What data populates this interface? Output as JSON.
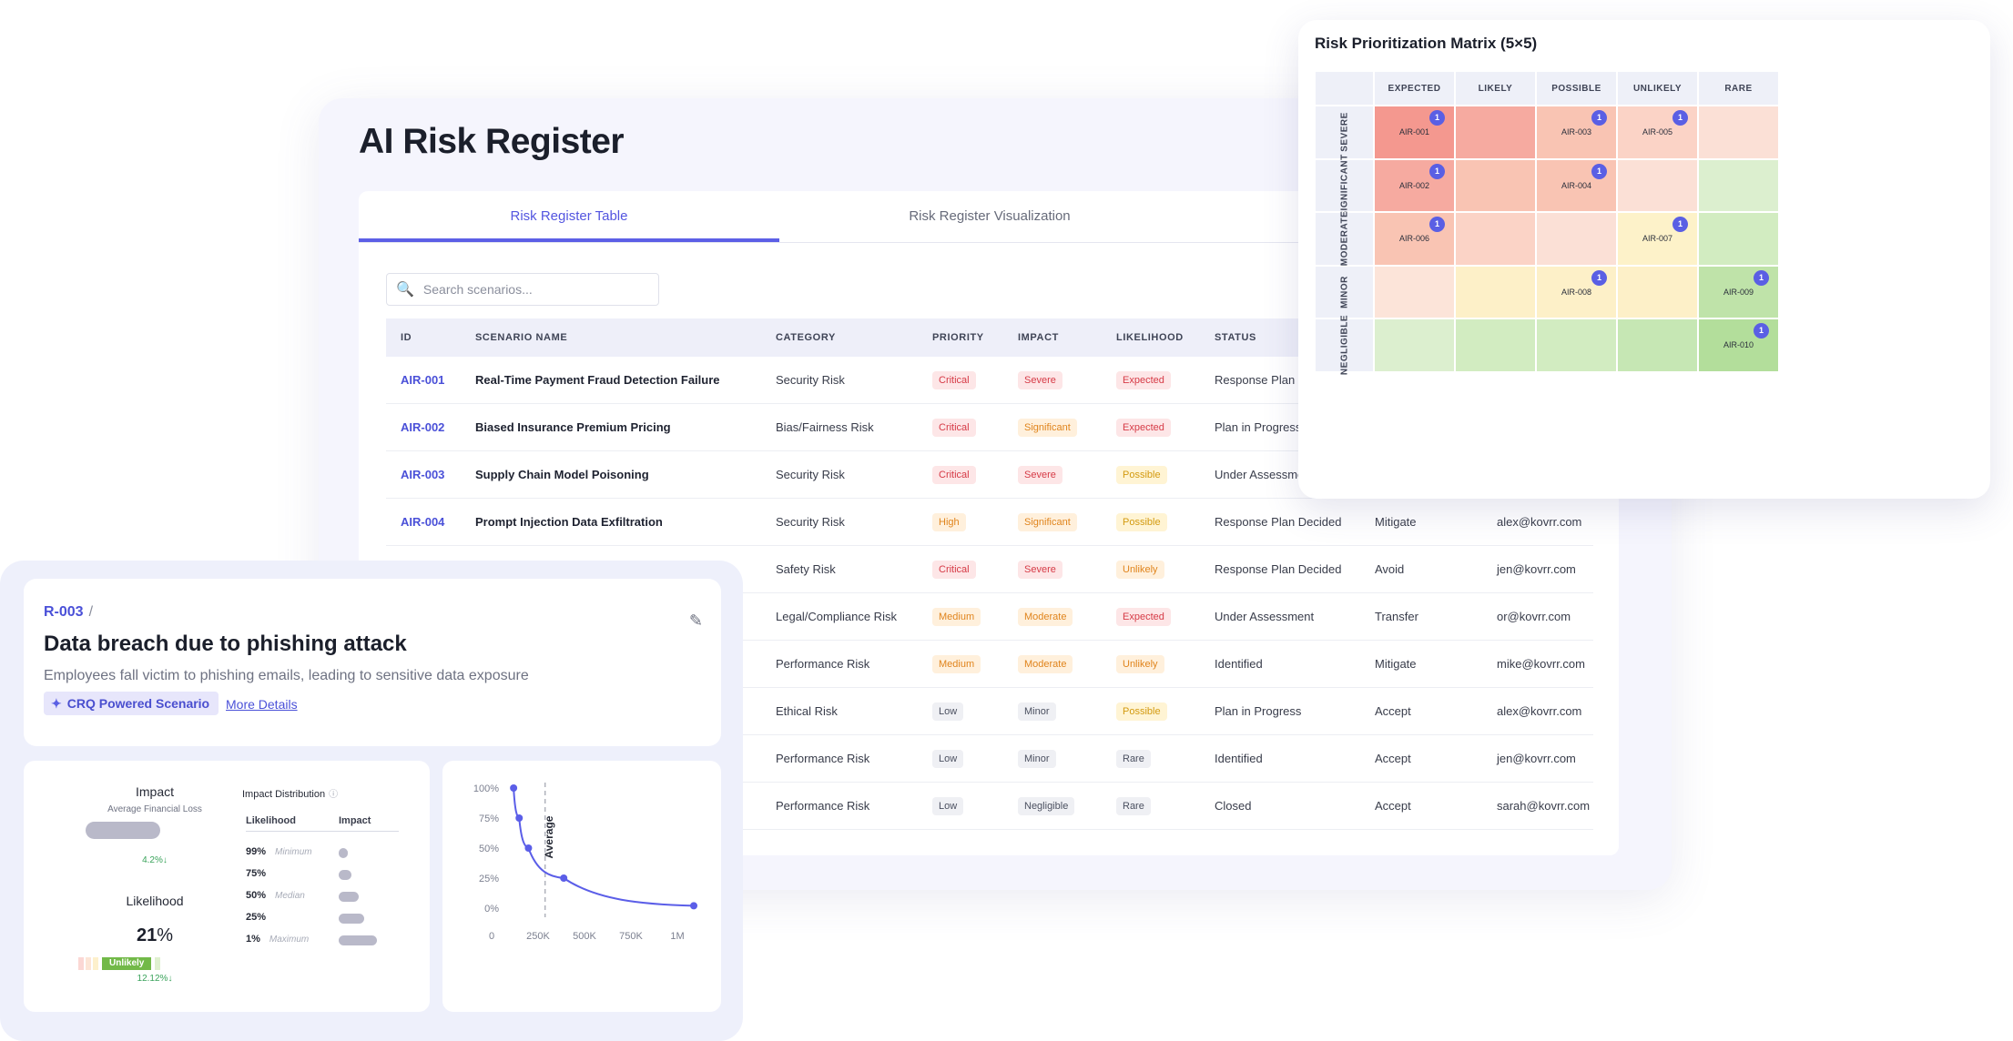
{
  "register": {
    "title": "AI Risk Register",
    "tabs": [
      "Risk Register Table",
      "Risk Register Visualization"
    ],
    "search_placeholder": "Search scenarios...",
    "columns": [
      "ID",
      "SCENARIO NAME",
      "CATEGORY",
      "PRIORITY",
      "IMPACT",
      "LIKELIHOOD",
      "STATUS",
      "",
      ""
    ],
    "rows": [
      {
        "id": "AIR-001",
        "name": "Real-Time Payment Fraud Detection Failure",
        "category": "Security Risk",
        "priority": "Critical",
        "impact": "Severe",
        "likelihood": "Expected",
        "status": "Response Plan Decided",
        "treatment": "",
        "owner": ""
      },
      {
        "id": "AIR-002",
        "name": "Biased Insurance Premium Pricing",
        "category": "Bias/Fairness Risk",
        "priority": "Critical",
        "impact": "Significant",
        "likelihood": "Expected",
        "status": "Plan in Progress",
        "treatment": "",
        "owner": ""
      },
      {
        "id": "AIR-003",
        "name": "Supply Chain Model Poisoning",
        "category": "Security Risk",
        "priority": "Critical",
        "impact": "Severe",
        "likelihood": "Possible",
        "status": "Under Assessment",
        "treatment": "",
        "owner": ""
      },
      {
        "id": "AIR-004",
        "name": "Prompt Injection Data Exfiltration",
        "category": "Security Risk",
        "priority": "High",
        "impact": "Significant",
        "likelihood": "Possible",
        "status": "Response Plan Decided",
        "treatment": "Mitigate",
        "owner": "alex@kovrr.com"
      },
      {
        "id": "",
        "name": "",
        "category": "Safety Risk",
        "priority": "Critical",
        "impact": "Severe",
        "likelihood": "Unlikely",
        "status": "Response Plan Decided",
        "treatment": "Avoid",
        "owner": "jen@kovrr.com"
      },
      {
        "id": "",
        "name": "",
        "category": "Legal/Compliance Risk",
        "priority": "Medium",
        "impact": "Moderate",
        "likelihood": "Expected",
        "status": "Under Assessment",
        "treatment": "Transfer",
        "owner": "or@kovrr.com"
      },
      {
        "id": "",
        "name": "",
        "category": "Performance Risk",
        "priority": "Medium",
        "impact": "Moderate",
        "likelihood": "Unlikely",
        "status": "Identified",
        "treatment": "Mitigate",
        "owner": "mike@kovrr.com"
      },
      {
        "id": "",
        "name": "",
        "category": "Ethical Risk",
        "priority": "Low",
        "impact": "Minor",
        "likelihood": "Possible",
        "status": "Plan in Progress",
        "treatment": "Accept",
        "owner": "alex@kovrr.com"
      },
      {
        "id": "",
        "name": "",
        "category": "Performance Risk",
        "priority": "Low",
        "impact": "Minor",
        "likelihood": "Rare",
        "status": "Identified",
        "treatment": "Accept",
        "owner": "jen@kovrr.com"
      },
      {
        "id": "",
        "name": "",
        "category": "Performance Risk",
        "priority": "Low",
        "impact": "Negligible",
        "likelihood": "Rare",
        "status": "Closed",
        "treatment": "Accept",
        "owner": "sarah@kovrr.com"
      }
    ]
  },
  "matrix": {
    "title": "Risk Prioritization Matrix (5×5)",
    "columns": [
      "EXPECTED",
      "LIKELY",
      "POSSIBLE",
      "UNLIKELY",
      "RARE"
    ],
    "rows": [
      "SEVERE",
      "SIGNIFICANT",
      "MODERATE",
      "MINOR",
      "NEGLIGIBLE"
    ],
    "colors": [
      [
        "#f4988f",
        "#f6aaa0",
        "#f9c4b3",
        "#fbd3c6",
        "#fbe0d6"
      ],
      [
        "#f6aaa0",
        "#f9c4b3",
        "#f9c4b3",
        "#fbe0d6",
        "#dcefcf"
      ],
      [
        "#f9c4b3",
        "#fbd3c6",
        "#fbe0d6",
        "#fdf2c9",
        "#d2ecc1"
      ],
      [
        "#fce4d9",
        "#fdf0c8",
        "#fdf0c8",
        "#fdf0c8",
        "#bfe3a9"
      ],
      [
        "#dcefcf",
        "#d2ecc1",
        "#d2ecc1",
        "#c6e7b4",
        "#b3de9b"
      ]
    ],
    "cells": [
      {
        "row": 0,
        "col": 0,
        "id": "AIR-001",
        "count": "1"
      },
      {
        "row": 0,
        "col": 2,
        "id": "AIR-003",
        "count": "1"
      },
      {
        "row": 0,
        "col": 3,
        "id": "AIR-005",
        "count": "1"
      },
      {
        "row": 1,
        "col": 0,
        "id": "AIR-002",
        "count": "1"
      },
      {
        "row": 1,
        "col": 2,
        "id": "AIR-004",
        "count": "1"
      },
      {
        "row": 2,
        "col": 0,
        "id": "AIR-006",
        "count": "1"
      },
      {
        "row": 2,
        "col": 3,
        "id": "AIR-007",
        "count": "1"
      },
      {
        "row": 3,
        "col": 2,
        "id": "AIR-008",
        "count": "1"
      },
      {
        "row": 3,
        "col": 4,
        "id": "AIR-009",
        "count": "1"
      },
      {
        "row": 4,
        "col": 4,
        "id": "AIR-010",
        "count": "1"
      }
    ]
  },
  "scenario": {
    "id": "R-003",
    "separator": "/",
    "title": "Data breach due to phishing attack",
    "description": "Employees fall victim to phishing emails, leading to sensitive data exposure",
    "chip": "CRQ Powered Scenario",
    "more_details": "More Details",
    "impact": {
      "label": "Impact",
      "sublabel": "Average Financial Loss",
      "trend": "4.2%↓"
    },
    "likelihood": {
      "label": "Likelihood",
      "value": "21",
      "unit": "%",
      "badge": "Unlikely",
      "trend": "12.12%↓"
    },
    "distribution": {
      "title": "Impact Distribution",
      "col_likelihood": "Likelihood",
      "col_impact": "Impact",
      "rows": [
        {
          "pct": "99%",
          "note": "Minimum"
        },
        {
          "pct": "75%",
          "note": ""
        },
        {
          "pct": "50%",
          "note": "Median"
        },
        {
          "pct": "25%",
          "note": ""
        },
        {
          "pct": "1%",
          "note": "Maximum"
        }
      ]
    }
  },
  "chart_data": {
    "type": "line",
    "title": "",
    "xlabel": "",
    "ylabel": "",
    "x_ticks": [
      "0",
      "250K",
      "500K",
      "750K",
      "1M"
    ],
    "y_ticks": [
      "100%",
      "75%",
      "50%",
      "25%",
      "0%"
    ],
    "xlim": [
      0,
      1000000
    ],
    "ylim": [
      0,
      100
    ],
    "annotation": {
      "label": "Average",
      "x": 200000
    },
    "series": [
      {
        "x": [
          30000,
          60000,
          110000,
          300000,
          1000000
        ],
        "y": [
          100,
          75,
          50,
          25,
          2
        ]
      }
    ]
  },
  "colors": {
    "accent": "#5a5fe4",
    "curve": "#5b5ee8"
  }
}
